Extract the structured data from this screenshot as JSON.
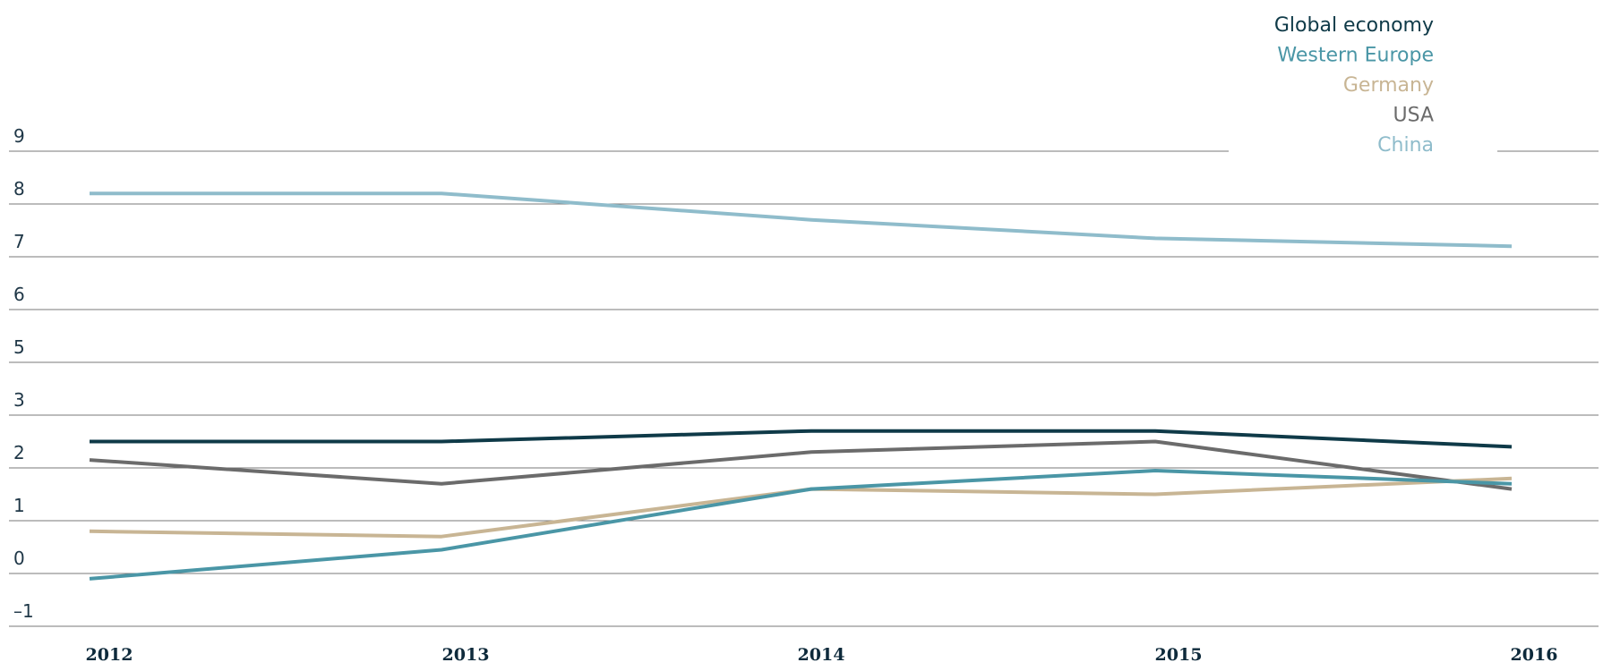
{
  "chart_data": {
    "type": "line",
    "title": "",
    "xlabel": "",
    "ylabel": "",
    "categories": [
      "2012",
      "2013",
      "2014",
      "2015",
      "2016"
    ],
    "y_tick_labels": [
      "9",
      "8",
      "7",
      "6",
      "5",
      "3",
      "2",
      "1",
      "0",
      "–1"
    ],
    "legend_position": "top-right",
    "grid": true,
    "series": [
      {
        "name": "Global economy",
        "color": "#0f3a48",
        "values": [
          2.5,
          2.5,
          2.7,
          2.7,
          2.4
        ]
      },
      {
        "name": "Western Europe",
        "color": "#4a96a6",
        "values": [
          -0.1,
          0.45,
          1.6,
          1.95,
          1.7
        ]
      },
      {
        "name": "Germany",
        "color": "#c8b594",
        "values": [
          0.8,
          0.7,
          1.6,
          1.5,
          1.8
        ]
      },
      {
        "name": "USA",
        "color": "#6b6b6b",
        "values": [
          2.15,
          1.7,
          2.3,
          2.5,
          1.6
        ]
      },
      {
        "name": "China",
        "color": "#8fbccb",
        "values": [
          8.2,
          8.2,
          7.7,
          7.35,
          7.2
        ]
      }
    ]
  }
}
